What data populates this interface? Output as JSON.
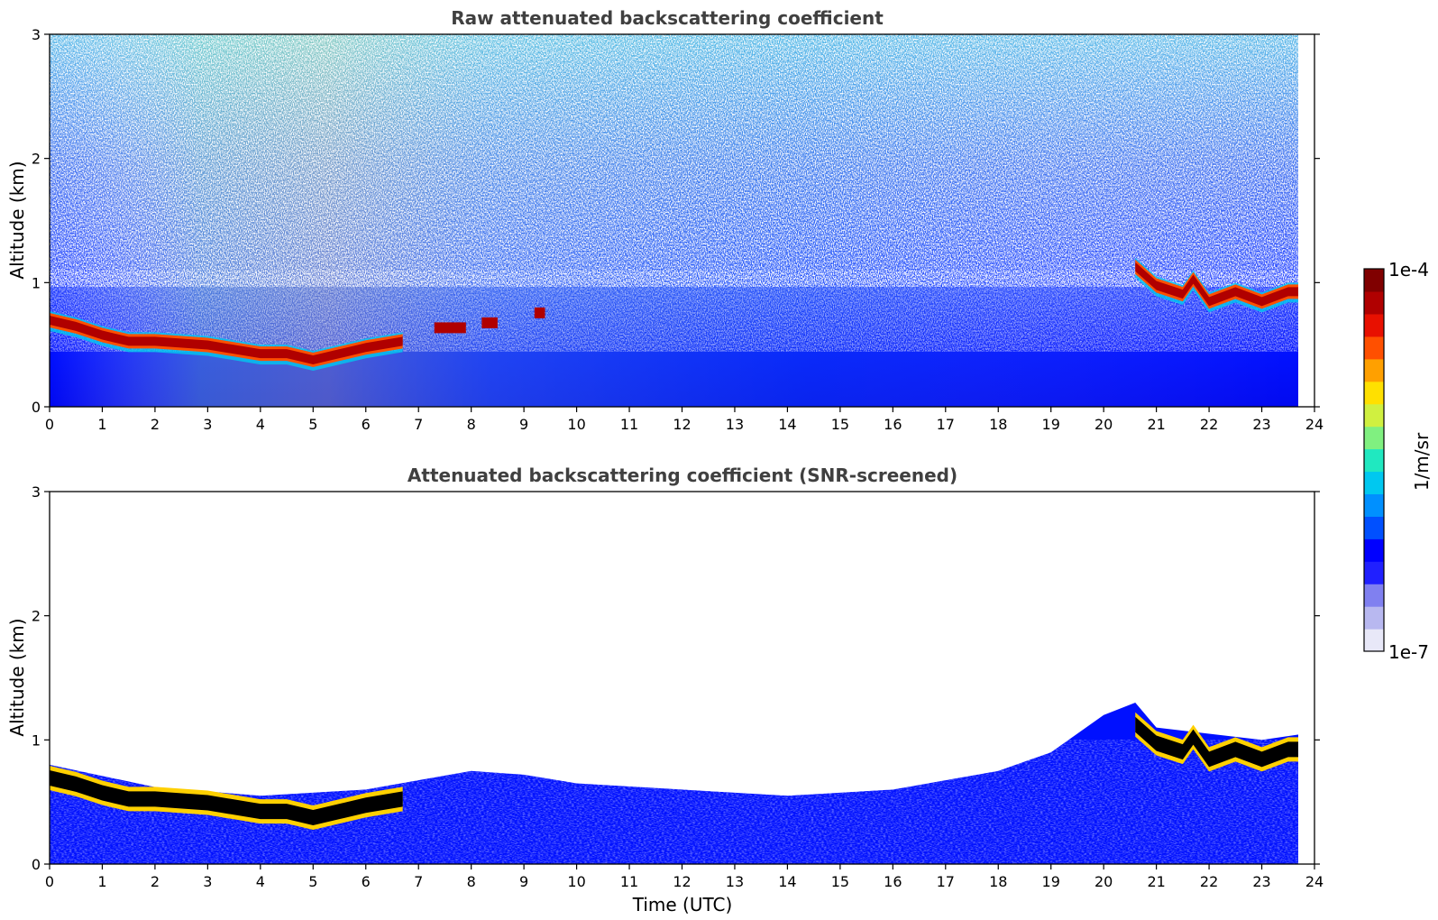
{
  "chart_data": [
    {
      "type": "heatmap",
      "title": "Raw attenuated backscattering coefficient",
      "xlabel": "",
      "ylabel": "Altitude (km)",
      "xlim": [
        0,
        24
      ],
      "ylim": [
        0,
        3
      ],
      "xticks": [
        "0",
        "1",
        "2",
        "3",
        "4",
        "5",
        "6",
        "7",
        "8",
        "9",
        "10",
        "11",
        "12",
        "13",
        "14",
        "15",
        "16",
        "17",
        "18",
        "19",
        "20",
        "21",
        "22",
        "23",
        "24"
      ],
      "yticks": [
        "0",
        "1",
        "2",
        "3"
      ],
      "color_scale": "log",
      "layer_top_km": {
        "time_utc": [
          0,
          0.5,
          1,
          1.5,
          2,
          3,
          4,
          4.5,
          5,
          5.5,
          6,
          6.7,
          20.6,
          21,
          21.5,
          21.7,
          22,
          22.5,
          23,
          23.5,
          23.8
        ],
        "altitude_km": [
          0.77,
          0.72,
          0.65,
          0.6,
          0.6,
          0.57,
          0.5,
          0.5,
          0.45,
          0.5,
          0.55,
          0.6,
          1.2,
          1.05,
          0.98,
          1.1,
          0.92,
          1.0,
          0.92,
          1.0,
          1.0
        ]
      },
      "elevated_layer_fragments": [
        {
          "time_utc": [
            7.3,
            7.9
          ],
          "altitude_km": 0.68
        },
        {
          "time_utc": [
            8.2,
            8.5
          ],
          "altitude_km": 0.72
        },
        {
          "time_utc": [
            9.2,
            9.4
          ],
          "altitude_km": 0.8
        }
      ]
    },
    {
      "type": "heatmap",
      "title": "Attenuated backscattering coefficient (SNR-screened)",
      "xlabel": "Time (UTC)",
      "ylabel": "Altitude (km)",
      "xlim": [
        0,
        24
      ],
      "ylim": [
        0,
        3
      ],
      "xticks": [
        "0",
        "1",
        "2",
        "3",
        "4",
        "5",
        "6",
        "7",
        "8",
        "9",
        "10",
        "11",
        "12",
        "13",
        "14",
        "15",
        "16",
        "17",
        "18",
        "19",
        "20",
        "21",
        "22",
        "23",
        "24"
      ],
      "yticks": [
        "0",
        "1",
        "2",
        "3"
      ],
      "color_scale": "log",
      "boundary_layer_top_km": {
        "time_utc": [
          0,
          2,
          4,
          6,
          8,
          9,
          10,
          12,
          14,
          16,
          18,
          19,
          20,
          20.6,
          21,
          22,
          23,
          23.8
        ],
        "altitude_km": [
          0.8,
          0.62,
          0.55,
          0.6,
          0.75,
          0.72,
          0.65,
          0.6,
          0.55,
          0.6,
          0.75,
          0.9,
          1.2,
          1.3,
          1.1,
          1.05,
          1.0,
          1.05
        ]
      }
    }
  ],
  "colorbar": {
    "label": "1/m/sr",
    "max_label": "1e-4",
    "min_label": "1e-7",
    "min_value": 1e-07,
    "max_value": 0.0001,
    "colors": [
      "#e8e8f8",
      "#b8b8f0",
      "#8080f0",
      "#2020ff",
      "#0000ff",
      "#0050ff",
      "#0090ff",
      "#00c8f0",
      "#20e8c0",
      "#80f080",
      "#d0f040",
      "#ffe000",
      "#ffa000",
      "#ff5000",
      "#e81000",
      "#b00000",
      "#800000"
    ]
  },
  "colors": {
    "layer": "#b00000",
    "layer_core_screened": "#000000",
    "aerosol": "#0000ff"
  }
}
